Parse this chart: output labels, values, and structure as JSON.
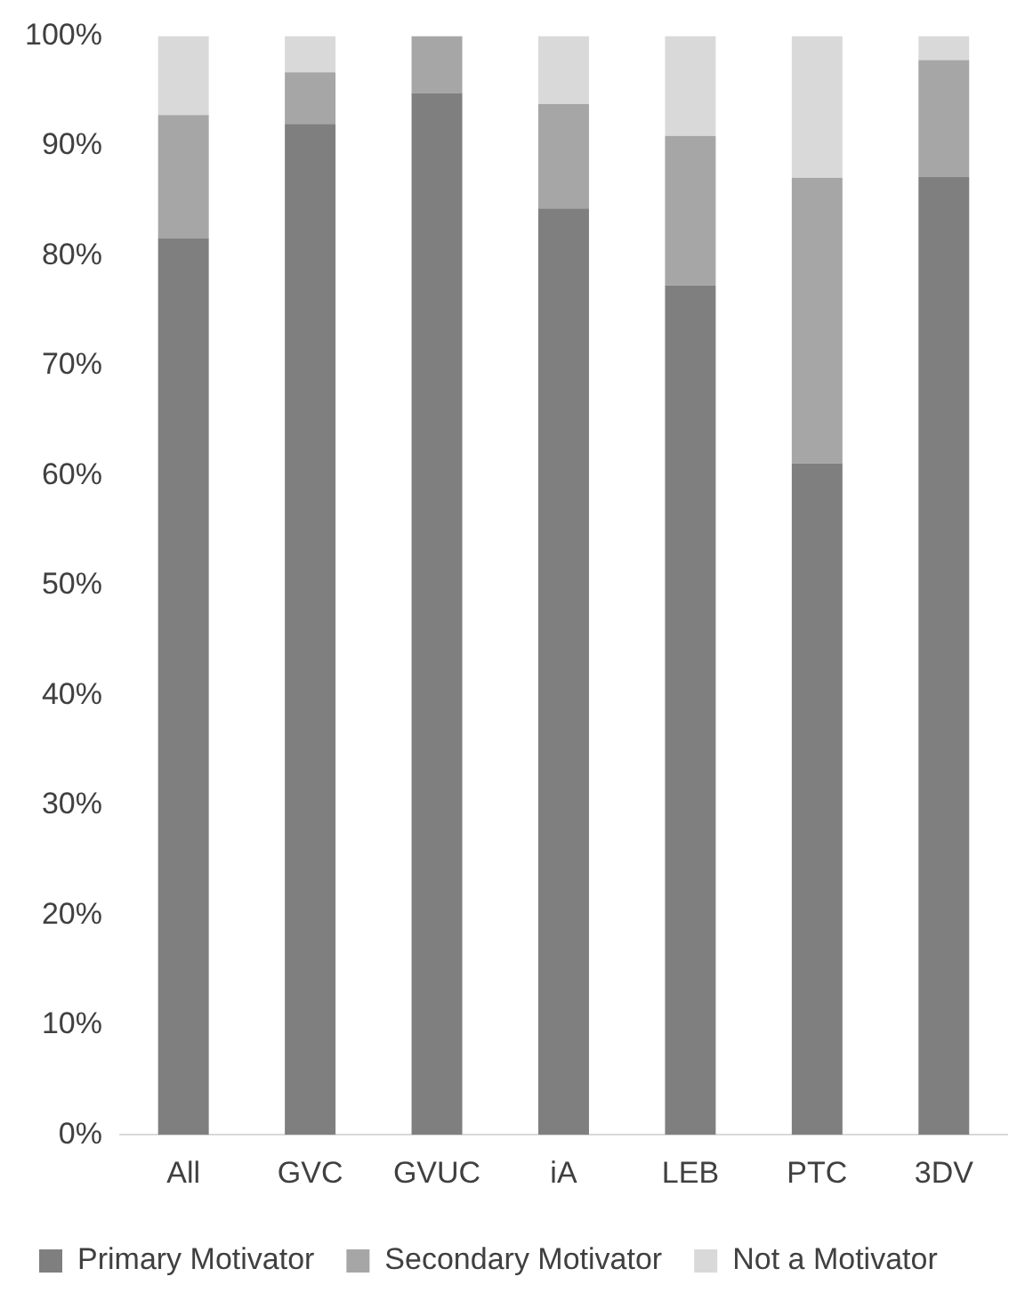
{
  "chart_data": {
    "type": "bar",
    "stacked": true,
    "categories": [
      "All",
      "GVC",
      "GVUC",
      "iA",
      "LEB",
      "PTC",
      "3DV"
    ],
    "series": [
      {
        "name": "Primary Motivator",
        "color": "#7f7f7f",
        "values": [
          81.6,
          92.0,
          94.8,
          84.3,
          77.3,
          61.1,
          87.2
        ]
      },
      {
        "name": "Secondary Motivator",
        "color": "#a6a6a6",
        "values": [
          11.2,
          4.7,
          5.2,
          9.5,
          13.6,
          26.0,
          10.6
        ]
      },
      {
        "name": "Not a Motivator",
        "color": "#d9d9d9",
        "values": [
          7.2,
          3.3,
          0,
          6.2,
          9.1,
          12.9,
          2.2
        ]
      }
    ],
    "ylim": [
      0,
      100
    ],
    "yticks": [
      {
        "value": 0,
        "label": "0%"
      },
      {
        "value": 10,
        "label": "10%"
      },
      {
        "value": 20,
        "label": "20%"
      },
      {
        "value": 30,
        "label": "30%"
      },
      {
        "value": 40,
        "label": "40%"
      },
      {
        "value": 50,
        "label": "50%"
      },
      {
        "value": 60,
        "label": "60%"
      },
      {
        "value": 70,
        "label": "70%"
      },
      {
        "value": 80,
        "label": "80%"
      },
      {
        "value": 90,
        "label": "90%"
      },
      {
        "value": 100,
        "label": "100%"
      }
    ],
    "grid": false,
    "legend": "bottom"
  }
}
